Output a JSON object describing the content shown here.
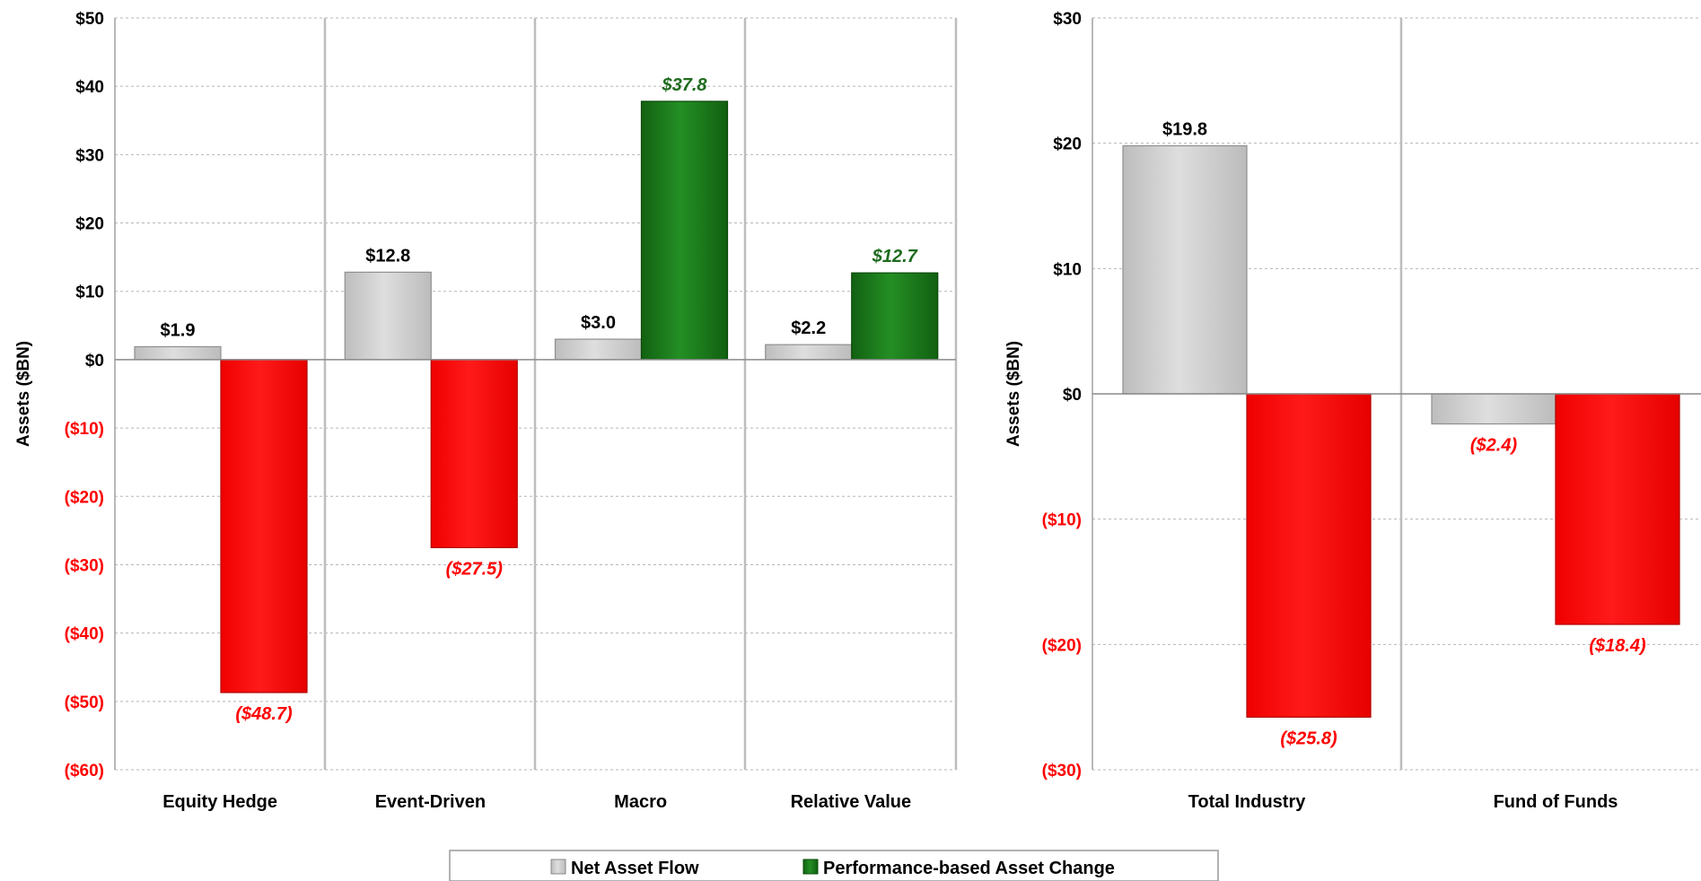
{
  "legend": {
    "items": [
      {
        "label": "Net Asset Flow",
        "color": "#c8c8c8"
      },
      {
        "label": "Performance-based Asset Change",
        "color": "#1e7d1e"
      }
    ]
  },
  "colors": {
    "net_flow": "#c8c8c8",
    "perf_positive": "#1e7d1e",
    "perf_negative": "#ff0000",
    "label_positive": "#000000",
    "label_perf_positive": "#1e6b1e",
    "label_negative": "#ff0000"
  },
  "chart_data": [
    {
      "type": "bar",
      "ylabel": "Assets ($BN)",
      "ylim": [
        -60,
        50
      ],
      "yticks": [
        50,
        40,
        30,
        20,
        10,
        0,
        -10,
        -20,
        -30,
        -40,
        -50,
        -60
      ],
      "ytick_labels": [
        "$50",
        "$40",
        "$30",
        "$20",
        "$10",
        "$0",
        "($10)",
        "($20)",
        "($30)",
        "($40)",
        "($50)",
        "($60)"
      ],
      "categories": [
        "Equity Hedge",
        "Event-Driven",
        "Macro",
        "Relative Value"
      ],
      "series": [
        {
          "name": "Net Asset Flow",
          "values": [
            1.9,
            12.8,
            3.0,
            2.2
          ],
          "labels": [
            "$1.9",
            "$12.8",
            "$3.0",
            "$2.2"
          ]
        },
        {
          "name": "Performance-based Asset Change",
          "values": [
            -48.7,
            -27.5,
            37.8,
            12.7
          ],
          "labels": [
            "($48.7)",
            "($27.5)",
            "$37.8",
            "$12.7"
          ]
        }
      ],
      "grid": true,
      "legend": "bottom"
    },
    {
      "type": "bar",
      "ylabel": "Assets ($BN)",
      "ylim": [
        -30,
        30
      ],
      "yticks": [
        30,
        20,
        10,
        0,
        -10,
        -20,
        -30
      ],
      "ytick_labels": [
        "$30",
        "$20",
        "$10",
        "$0",
        "($10)",
        "($20)",
        "($30)"
      ],
      "categories": [
        "Total Industry",
        "Fund of Funds"
      ],
      "series": [
        {
          "name": "Net Asset Flow",
          "values": [
            19.8,
            -2.4
          ],
          "labels": [
            "$19.8",
            "($2.4)"
          ]
        },
        {
          "name": "Performance-based Asset Change",
          "values": [
            -25.8,
            -18.4
          ],
          "labels": [
            "($25.8)",
            "($18.4)"
          ]
        }
      ],
      "grid": true,
      "legend": "bottom"
    }
  ]
}
